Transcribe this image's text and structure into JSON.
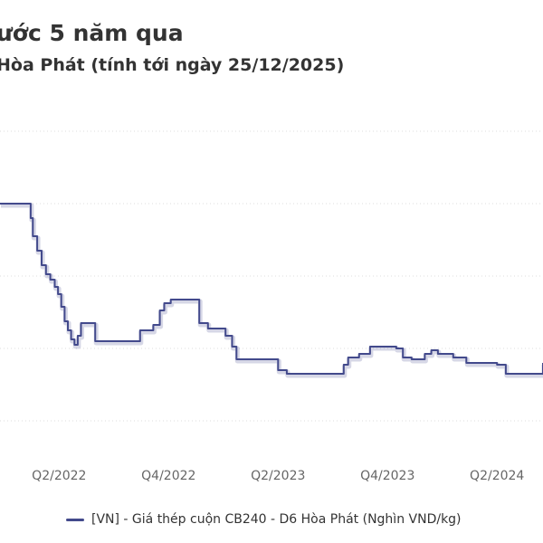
{
  "header": {
    "title": "ước 5 năm qua",
    "subtitle": "Hòa Phát (tính tới ngày 25/12/2025)"
  },
  "colors": {
    "series": "#434a8c",
    "grid": "#dddddd",
    "axis_text": "#666666",
    "text": "#333333"
  },
  "chart_data": {
    "type": "line",
    "title": "ước 5 năm qua",
    "subtitle": "Hòa Phát (tính tới ngày 25/12/2025)",
    "xlabel": "",
    "ylabel": "",
    "x_tick_labels": [
      "Q2/2022",
      "Q4/2022",
      "Q2/2023",
      "Q4/2023",
      "Q2/2024"
    ],
    "x_tick_times": [
      2022.25,
      2022.75,
      2023.25,
      2023.75,
      2024.25
    ],
    "xlim": [
      2021.98,
      2024.46
    ],
    "ylim": [
      11.0,
      21.0
    ],
    "grid": true,
    "gridlines_y": [
      12,
      14,
      16,
      18,
      20
    ],
    "legend_position": "bottom",
    "series": [
      {
        "name": "[VN] - Giá thép cuộn CB240 - D6 Hòa Phát (Nghìn VND/kg)",
        "step": true,
        "points": [
          [
            2021.98,
            18.0
          ],
          [
            2022.1,
            18.0
          ],
          [
            2022.12,
            17.6
          ],
          [
            2022.13,
            17.1
          ],
          [
            2022.15,
            16.7
          ],
          [
            2022.17,
            16.3
          ],
          [
            2022.19,
            16.05
          ],
          [
            2022.21,
            15.9
          ],
          [
            2022.23,
            15.7
          ],
          [
            2022.245,
            15.5
          ],
          [
            2022.26,
            15.15
          ],
          [
            2022.275,
            14.75
          ],
          [
            2022.29,
            14.5
          ],
          [
            2022.305,
            14.25
          ],
          [
            2022.32,
            14.1
          ],
          [
            2022.335,
            14.35
          ],
          [
            2022.35,
            14.7
          ],
          [
            2022.4,
            14.7
          ],
          [
            2022.415,
            14.2
          ],
          [
            2022.6,
            14.2
          ],
          [
            2022.62,
            14.5
          ],
          [
            2022.68,
            14.65
          ],
          [
            2022.71,
            15.05
          ],
          [
            2022.73,
            15.25
          ],
          [
            2022.76,
            15.35
          ],
          [
            2022.87,
            15.35
          ],
          [
            2022.89,
            14.7
          ],
          [
            2022.93,
            14.55
          ],
          [
            2023.01,
            14.35
          ],
          [
            2023.04,
            14.05
          ],
          [
            2023.06,
            13.7
          ],
          [
            2023.23,
            13.7
          ],
          [
            2023.25,
            13.4
          ],
          [
            2023.29,
            13.3
          ],
          [
            2023.45,
            13.3
          ],
          [
            2023.53,
            13.3
          ],
          [
            2023.55,
            13.55
          ],
          [
            2023.57,
            13.75
          ],
          [
            2023.62,
            13.85
          ],
          [
            2023.67,
            14.05
          ],
          [
            2023.74,
            14.05
          ],
          [
            2023.79,
            14.0
          ],
          [
            2023.82,
            13.75
          ],
          [
            2023.86,
            13.7
          ],
          [
            2023.92,
            13.85
          ],
          [
            2023.95,
            13.95
          ],
          [
            2023.98,
            13.85
          ],
          [
            2024.05,
            13.75
          ],
          [
            2024.11,
            13.6
          ],
          [
            2024.22,
            13.6
          ],
          [
            2024.25,
            13.55
          ],
          [
            2024.29,
            13.3
          ],
          [
            2024.44,
            13.3
          ],
          [
            2024.46,
            13.6
          ]
        ]
      }
    ]
  }
}
